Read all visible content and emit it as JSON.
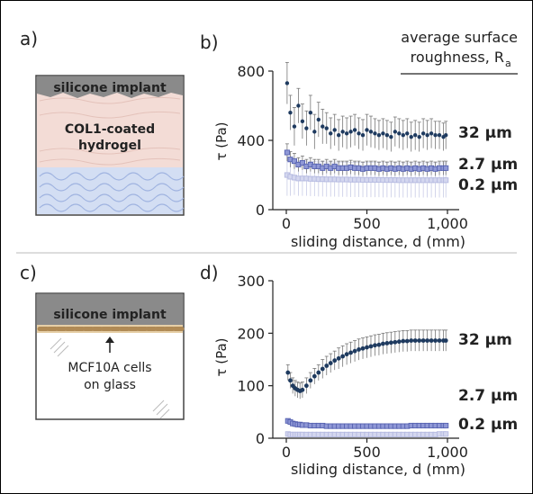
{
  "panels": {
    "a": {
      "letter": "a)",
      "implant_label": "silicone implant",
      "hydrogel_label_line1": "COL1-coated",
      "hydrogel_label_line2": "hydrogel"
    },
    "c": {
      "letter": "c)",
      "implant_label": "silicone implant",
      "cells_label_line1": "MCF10A cells",
      "cells_label_line2": "on glass"
    }
  },
  "legend_text": {
    "line1": "average surface",
    "line2": "roughness, R",
    "subscript": "a"
  },
  "colors": {
    "r32": "#1e3a5f",
    "r27": "#5561b0",
    "r02": "#b4b9e0",
    "implant": "#8a8a8a",
    "hydrogel": "#f3dcd6",
    "gel_blue": "#c9d6ee",
    "cells": "#d8b98c"
  },
  "chart_data": [
    {
      "type": "scatter",
      "panel": "b)",
      "ylabel": "τ (Pa)",
      "xlabel": "sliding distance, d (mm)",
      "xlim": [
        0,
        1000
      ],
      "ylim": [
        0,
        800
      ],
      "xticks": [
        0,
        500,
        1000
      ],
      "xtick_labels": [
        "0",
        "500",
        "1,000"
      ],
      "yticks": [
        0,
        400,
        800
      ],
      "ytick_labels": [
        "0",
        "400",
        "800"
      ],
      "series": [
        {
          "name": "32 µm",
          "x": [
            5,
            25,
            50,
            75,
            100,
            125,
            150,
            175,
            200,
            225,
            250,
            275,
            300,
            325,
            350,
            375,
            400,
            425,
            450,
            475,
            500,
            525,
            550,
            575,
            600,
            625,
            650,
            675,
            700,
            725,
            750,
            775,
            800,
            825,
            850,
            875,
            900,
            925,
            950,
            975,
            990
          ],
          "y": [
            730,
            560,
            480,
            600,
            510,
            470,
            560,
            450,
            520,
            480,
            470,
            440,
            460,
            430,
            450,
            440,
            450,
            460,
            440,
            430,
            460,
            450,
            440,
            430,
            440,
            430,
            420,
            450,
            440,
            430,
            440,
            420,
            430,
            420,
            440,
            430,
            440,
            430,
            430,
            420,
            430
          ],
          "err": [
            120,
            100,
            110,
            100,
            100,
            100,
            100,
            100,
            100,
            100,
            90,
            90,
            90,
            90,
            90,
            90,
            90,
            90,
            90,
            90,
            90,
            90,
            85,
            85,
            85,
            85,
            85,
            85,
            85,
            85,
            85,
            85,
            85,
            85,
            85,
            85,
            85,
            80,
            80,
            80,
            80
          ]
        },
        {
          "name": "2.7 µm",
          "x": [
            5,
            25,
            50,
            75,
            100,
            125,
            150,
            175,
            200,
            225,
            250,
            275,
            300,
            325,
            350,
            375,
            400,
            425,
            450,
            475,
            500,
            525,
            550,
            575,
            600,
            625,
            650,
            675,
            700,
            725,
            750,
            775,
            800,
            825,
            850,
            875,
            900,
            925,
            950,
            975,
            990
          ],
          "y": [
            330,
            290,
            280,
            260,
            270,
            250,
            260,
            250,
            250,
            240,
            250,
            240,
            250,
            240,
            240,
            240,
            245,
            240,
            240,
            235,
            240,
            240,
            240,
            235,
            240,
            235,
            240,
            235,
            240,
            235,
            240,
            235,
            240,
            235,
            240,
            235,
            240,
            235,
            240,
            240,
            240
          ],
          "err": [
            50,
            45,
            45,
            40,
            40,
            40,
            40,
            40,
            40,
            40,
            40,
            40,
            40,
            40,
            40,
            40,
            40,
            40,
            40,
            40,
            40,
            40,
            40,
            40,
            40,
            40,
            40,
            40,
            40,
            40,
            40,
            40,
            40,
            40,
            40,
            40,
            40,
            40,
            40,
            40,
            40
          ]
        },
        {
          "name": "0.2 µm",
          "x": [
            5,
            25,
            50,
            75,
            100,
            125,
            150,
            175,
            200,
            225,
            250,
            275,
            300,
            325,
            350,
            375,
            400,
            425,
            450,
            475,
            500,
            525,
            550,
            575,
            600,
            625,
            650,
            675,
            700,
            725,
            750,
            775,
            800,
            825,
            850,
            875,
            900,
            925,
            950,
            975,
            990
          ],
          "y": [
            200,
            190,
            185,
            180,
            180,
            180,
            178,
            178,
            176,
            176,
            175,
            175,
            175,
            174,
            174,
            174,
            173,
            173,
            173,
            172,
            172,
            172,
            172,
            172,
            171,
            171,
            171,
            171,
            170,
            170,
            170,
            170,
            170,
            170,
            170,
            170,
            170,
            170,
            170,
            170,
            170
          ],
          "err": [
            120,
            110,
            100,
            100,
            100,
            100,
            100,
            100,
            100,
            100,
            100,
            100,
            100,
            100,
            100,
            100,
            100,
            100,
            100,
            100,
            100,
            100,
            100,
            100,
            100,
            100,
            100,
            100,
            100,
            100,
            100,
            100,
            100,
            100,
            100,
            100,
            100,
            100,
            100,
            100,
            100
          ]
        }
      ]
    },
    {
      "type": "scatter",
      "panel": "d)",
      "ylabel": "τ (Pa)",
      "xlabel": "sliding distance, d (mm)",
      "xlim": [
        0,
        1000
      ],
      "ylim": [
        0,
        300
      ],
      "xticks": [
        0,
        500,
        1000
      ],
      "xtick_labels": [
        "0",
        "500",
        "1,000"
      ],
      "yticks": [
        0,
        100,
        200,
        300
      ],
      "ytick_labels": [
        "0",
        "100",
        "200",
        "300"
      ],
      "series": [
        {
          "name": "32 µm",
          "x": [
            10,
            25,
            40,
            55,
            70,
            85,
            100,
            125,
            150,
            175,
            200,
            225,
            250,
            275,
            300,
            325,
            350,
            375,
            400,
            425,
            450,
            475,
            500,
            525,
            550,
            575,
            600,
            625,
            650,
            675,
            700,
            725,
            750,
            775,
            800,
            825,
            850,
            875,
            900,
            925,
            950,
            975,
            990
          ],
          "y": [
            125,
            110,
            100,
            95,
            92,
            90,
            92,
            100,
            110,
            118,
            125,
            132,
            138,
            143,
            148,
            152,
            156,
            160,
            163,
            166,
            169,
            171,
            173,
            175,
            177,
            178,
            180,
            181,
            182,
            183,
            184,
            185,
            185,
            186,
            186,
            186,
            186,
            186,
            186,
            186,
            186,
            186,
            186
          ],
          "err": [
            15,
            15,
            15,
            15,
            15,
            15,
            15,
            15,
            15,
            15,
            15,
            18,
            18,
            18,
            18,
            20,
            20,
            20,
            20,
            20,
            20,
            20,
            20,
            20,
            20,
            20,
            20,
            20,
            20,
            20,
            20,
            20,
            20,
            20,
            20,
            20,
            20,
            20,
            20,
            20,
            20,
            20,
            20
          ]
        },
        {
          "name": "2.7 µm",
          "x": [
            10,
            25,
            40,
            55,
            70,
            85,
            100,
            125,
            150,
            175,
            200,
            225,
            250,
            275,
            300,
            325,
            350,
            375,
            400,
            425,
            450,
            475,
            500,
            525,
            550,
            575,
            600,
            625,
            650,
            675,
            700,
            725,
            750,
            775,
            800,
            825,
            850,
            875,
            900,
            925,
            950,
            975,
            990
          ],
          "y": [
            33,
            31,
            28,
            27,
            26,
            26,
            25,
            25,
            24,
            24,
            24,
            24,
            23,
            23,
            23,
            23,
            23,
            23,
            23,
            23,
            23,
            23,
            23,
            23,
            23,
            23,
            23,
            23,
            23,
            23,
            23,
            23,
            23,
            24,
            24,
            24,
            24,
            24,
            24,
            24,
            24,
            24,
            24
          ],
          "err": [
            3,
            3,
            3,
            2,
            2,
            2,
            2,
            2,
            2,
            2,
            2,
            2,
            2,
            2,
            2,
            2,
            2,
            2,
            2,
            2,
            2,
            2,
            2,
            2,
            2,
            2,
            2,
            2,
            2,
            2,
            2,
            2,
            2,
            2,
            2,
            2,
            2,
            2,
            2,
            2,
            2,
            2,
            2
          ]
        },
        {
          "name": "0.2 µm",
          "x": [
            10,
            25,
            40,
            55,
            70,
            85,
            100,
            125,
            150,
            175,
            200,
            225,
            250,
            275,
            300,
            325,
            350,
            375,
            400,
            425,
            450,
            475,
            500,
            525,
            550,
            575,
            600,
            625,
            650,
            675,
            700,
            725,
            750,
            775,
            800,
            825,
            850,
            875,
            900,
            925,
            950,
            975,
            990
          ],
          "y": [
            8,
            7,
            7,
            7,
            7,
            7,
            7,
            7,
            7,
            7,
            7,
            7,
            7,
            7,
            7,
            7,
            7,
            7,
            7,
            7,
            7,
            7,
            7,
            7,
            7,
            7,
            7,
            7,
            7,
            7,
            7,
            7,
            7,
            7,
            7,
            7,
            7,
            7,
            7,
            7,
            8,
            8,
            8
          ],
          "err": [
            1,
            1,
            1,
            1,
            1,
            1,
            1,
            1,
            1,
            1,
            1,
            1,
            1,
            1,
            1,
            1,
            1,
            1,
            1,
            1,
            1,
            1,
            1,
            1,
            1,
            1,
            1,
            1,
            1,
            1,
            1,
            1,
            1,
            1,
            1,
            1,
            1,
            1,
            1,
            1,
            1,
            1,
            1
          ]
        }
      ]
    }
  ]
}
